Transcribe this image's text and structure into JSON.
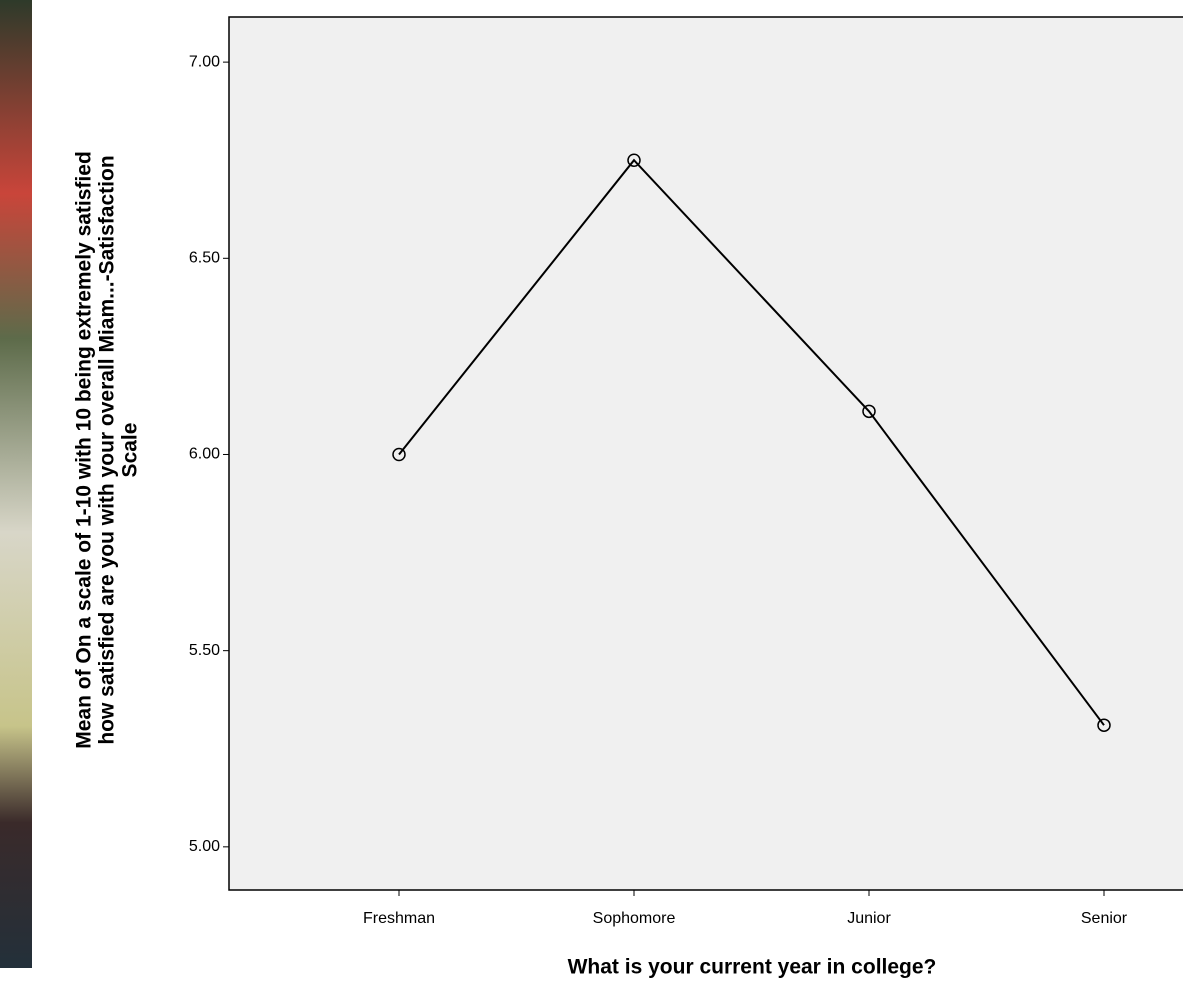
{
  "chart_data": {
    "type": "line",
    "x_label": "What is your current year in college?",
    "y_label": [
      "Mean of On a scale of 1-10 with 10 being extremely satisfied",
      "how satisfied are you with your overall Miam...-Satisfaction",
      "Scale"
    ],
    "categories": [
      "Freshman",
      "Sophomore",
      "Junior",
      "Senior"
    ],
    "values": [
      6.0,
      6.75,
      6.11,
      5.31
    ],
    "color": "#000000",
    "ylim": [
      4.89,
      7.115
    ],
    "yticks": [
      {
        "value": 5,
        "label": "5.00"
      },
      {
        "value": 5.5,
        "label": "5.50"
      },
      {
        "value": 6,
        "label": "6.00"
      },
      {
        "value": 6.5,
        "label": "6.50"
      },
      {
        "value": 7,
        "label": "7.00"
      }
    ],
    "grid": false
  }
}
